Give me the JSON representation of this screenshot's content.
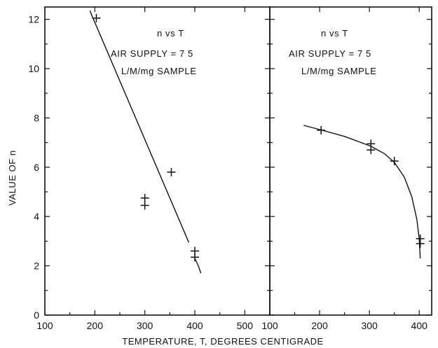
{
  "chart_data": [
    {
      "type": "scatter",
      "panel": "left",
      "annotations": [
        "n   vs   T",
        "AIR  SUPPLY = 7 5",
        "L/M/mg  SAMPLE"
      ],
      "xlim": [
        100,
        550
      ],
      "ylim": [
        0,
        12.5
      ],
      "xticks": [
        100,
        200,
        300,
        400,
        500
      ],
      "xtick_labels": [
        "100",
        "200",
        "300",
        "400",
        "500"
      ],
      "yticks": [
        0,
        2,
        4,
        6,
        8,
        10,
        12
      ],
      "ytick_labels": [
        "0",
        "2",
        "4",
        "6",
        "8",
        "10",
        "12"
      ],
      "ylabel": "VALUE  OF  n",
      "grid": false,
      "points": [
        {
          "x": 203,
          "y": 12.05
        },
        {
          "x": 300,
          "y": 4.75
        },
        {
          "x": 300,
          "y": 4.45
        },
        {
          "x": 353,
          "y": 5.8
        },
        {
          "x": 400,
          "y": 2.6
        },
        {
          "x": 400,
          "y": 2.35
        }
      ],
      "fit_line": [
        {
          "x": 190,
          "y": 12.35
        },
        {
          "x": 388,
          "y": 2.95
        }
      ],
      "fit_tail": [
        {
          "x": 400,
          "y": 2.3
        },
        {
          "x": 407,
          "y": 2.0
        },
        {
          "x": 412,
          "y": 1.7
        }
      ]
    },
    {
      "type": "scatter",
      "panel": "right",
      "annotations": [
        "n   vs   T",
        "AIR  SUPPLY = 7 5",
        "L/M/mg  SAMPLE"
      ],
      "xlim": [
        100,
        425
      ],
      "ylim": [
        0,
        12.5
      ],
      "xticks": [
        100,
        200,
        300,
        400
      ],
      "xtick_labels": [
        "100",
        "200",
        "300",
        "400"
      ],
      "yticks": [
        0,
        2,
        4,
        6,
        8,
        10,
        12
      ],
      "grid": false,
      "points": [
        {
          "x": 203,
          "y": 7.5
        },
        {
          "x": 303,
          "y": 6.95
        },
        {
          "x": 303,
          "y": 6.7
        },
        {
          "x": 350,
          "y": 6.25
        },
        {
          "x": 402,
          "y": 3.1
        },
        {
          "x": 402,
          "y": 2.9
        }
      ],
      "fit_curve": [
        {
          "x": 168,
          "y": 7.7
        },
        {
          "x": 205,
          "y": 7.5
        },
        {
          "x": 250,
          "y": 7.25
        },
        {
          "x": 303,
          "y": 6.85
        },
        {
          "x": 330,
          "y": 6.55
        },
        {
          "x": 350,
          "y": 6.2
        },
        {
          "x": 370,
          "y": 5.6
        },
        {
          "x": 385,
          "y": 4.8
        },
        {
          "x": 395,
          "y": 3.9
        },
        {
          "x": 400,
          "y": 3.1
        },
        {
          "x": 402,
          "y": 2.3
        }
      ]
    }
  ],
  "xlabel": "TEMPERATURE, T,  DEGREES  CENTIGRADE"
}
